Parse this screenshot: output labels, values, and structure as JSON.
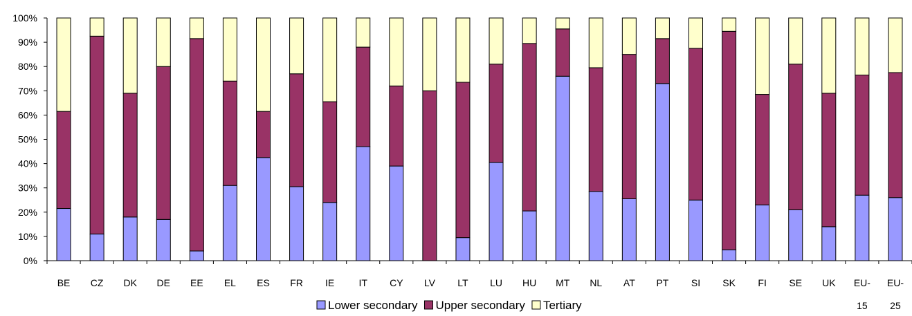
{
  "chart_data": {
    "type": "bar",
    "stacked": "percent",
    "title": "",
    "xlabel": "",
    "ylabel": "",
    "ylim": [
      0,
      100
    ],
    "y_ticks": [
      "0%",
      "10%",
      "20%",
      "30%",
      "40%",
      "50%",
      "60%",
      "70%",
      "80%",
      "90%",
      "100%"
    ],
    "grid": false,
    "legend_position": "bottom",
    "categories": [
      [
        "BE"
      ],
      [
        "CZ"
      ],
      [
        "DK"
      ],
      [
        "DE"
      ],
      [
        "EE"
      ],
      [
        "EL"
      ],
      [
        "ES"
      ],
      [
        "FR"
      ],
      [
        "IE"
      ],
      [
        "IT"
      ],
      [
        "CY"
      ],
      [
        "LV"
      ],
      [
        "LT"
      ],
      [
        "LU"
      ],
      [
        "HU"
      ],
      [
        "MT"
      ],
      [
        "NL"
      ],
      [
        "AT"
      ],
      [
        "PT"
      ],
      [
        "SI"
      ],
      [
        "SK"
      ],
      [
        "FI"
      ],
      [
        "SE"
      ],
      [
        "UK"
      ],
      [
        "EU-",
        "15"
      ],
      [
        "EU-",
        "25"
      ]
    ],
    "series": [
      {
        "name": "Lower secondary",
        "color": "#9999ff",
        "values": [
          21.5,
          11,
          18,
          17,
          4,
          31,
          42.5,
          30.5,
          24,
          47,
          39,
          0,
          9.5,
          40.5,
          20.5,
          76,
          28.5,
          25.5,
          73,
          25,
          4.5,
          23,
          21,
          14,
          27,
          26
        ]
      },
      {
        "name": "Upper secondary",
        "color": "#993366",
        "values": [
          40,
          81.5,
          51,
          63,
          87.5,
          43,
          19,
          46.5,
          41.5,
          41,
          33,
          70,
          64,
          40.5,
          69,
          19.5,
          51,
          59.5,
          18.5,
          62.5,
          90,
          45.5,
          60,
          55,
          49.5,
          51.5
        ]
      },
      {
        "name": "Tertiary",
        "color": "#ffffcc",
        "values": [
          38.5,
          7.5,
          31,
          20,
          8.5,
          26,
          38.5,
          23,
          34.5,
          12,
          28,
          30,
          26.5,
          19,
          10.5,
          4.5,
          20.5,
          15,
          8.5,
          12.5,
          5.5,
          31.5,
          19,
          31,
          23.5,
          22.5
        ]
      }
    ]
  }
}
